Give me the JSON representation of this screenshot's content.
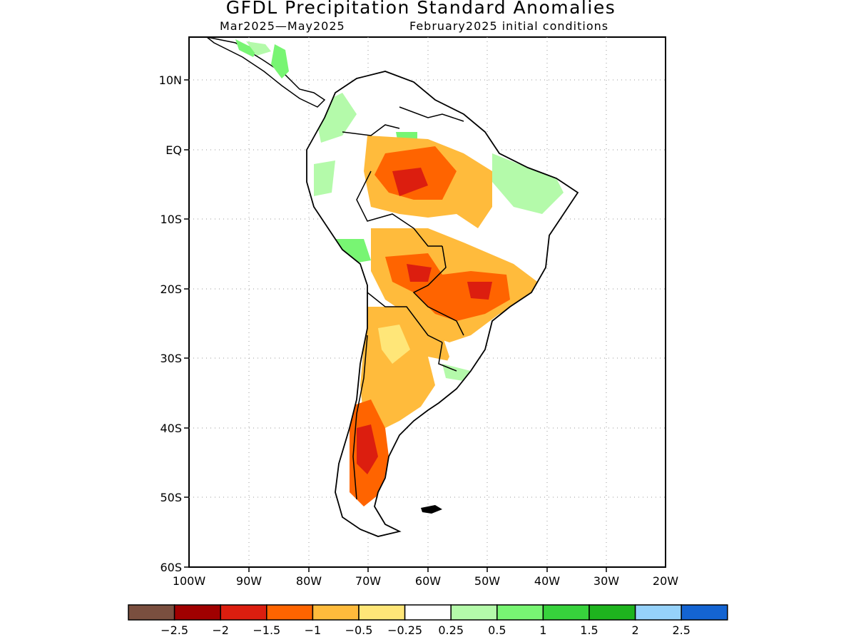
{
  "title": "GFDL Precipitation Standard Anomalies",
  "subtitle_left": "Mar2025—May2025",
  "subtitle_right": "February2025 initial conditions",
  "map": {
    "lon_labels": [
      "100W",
      "90W",
      "80W",
      "70W",
      "60W",
      "50W",
      "40W",
      "30W",
      "20W"
    ],
    "lat_labels": [
      "10N",
      "EQ",
      "10S",
      "20S",
      "30S",
      "40S",
      "50S",
      "60S"
    ],
    "lon_range": [
      -100,
      -20
    ],
    "lat_range": [
      -60,
      15
    ],
    "grid": true
  },
  "colorbar": {
    "colors": [
      "#7a4f3f",
      "#a00000",
      "#dc1e0f",
      "#ff6400",
      "#ffbb3c",
      "#ffe678",
      "#ffffff",
      "#b4faaa",
      "#78f573",
      "#37d23c",
      "#1eb41e",
      "#96d2fa",
      "#1464d2"
    ],
    "labels": [
      "−2.5",
      "−2",
      "−1.5",
      "−1",
      "−0.5",
      "−0.25",
      "0.25",
      "0.5",
      "1",
      "1.5",
      "2",
      "2.5"
    ]
  },
  "anomaly_regions": [
    {
      "category": "-0.5",
      "color": "#ffbb3c"
    },
    {
      "category": "-0.25",
      "color": "#ffe678"
    },
    {
      "category": "-1",
      "color": "#ff6400"
    },
    {
      "category": "-1.5",
      "color": "#dc1e0f"
    },
    {
      "category": "0.5",
      "color": "#b4faaa"
    },
    {
      "category": "1",
      "color": "#78f573"
    }
  ]
}
